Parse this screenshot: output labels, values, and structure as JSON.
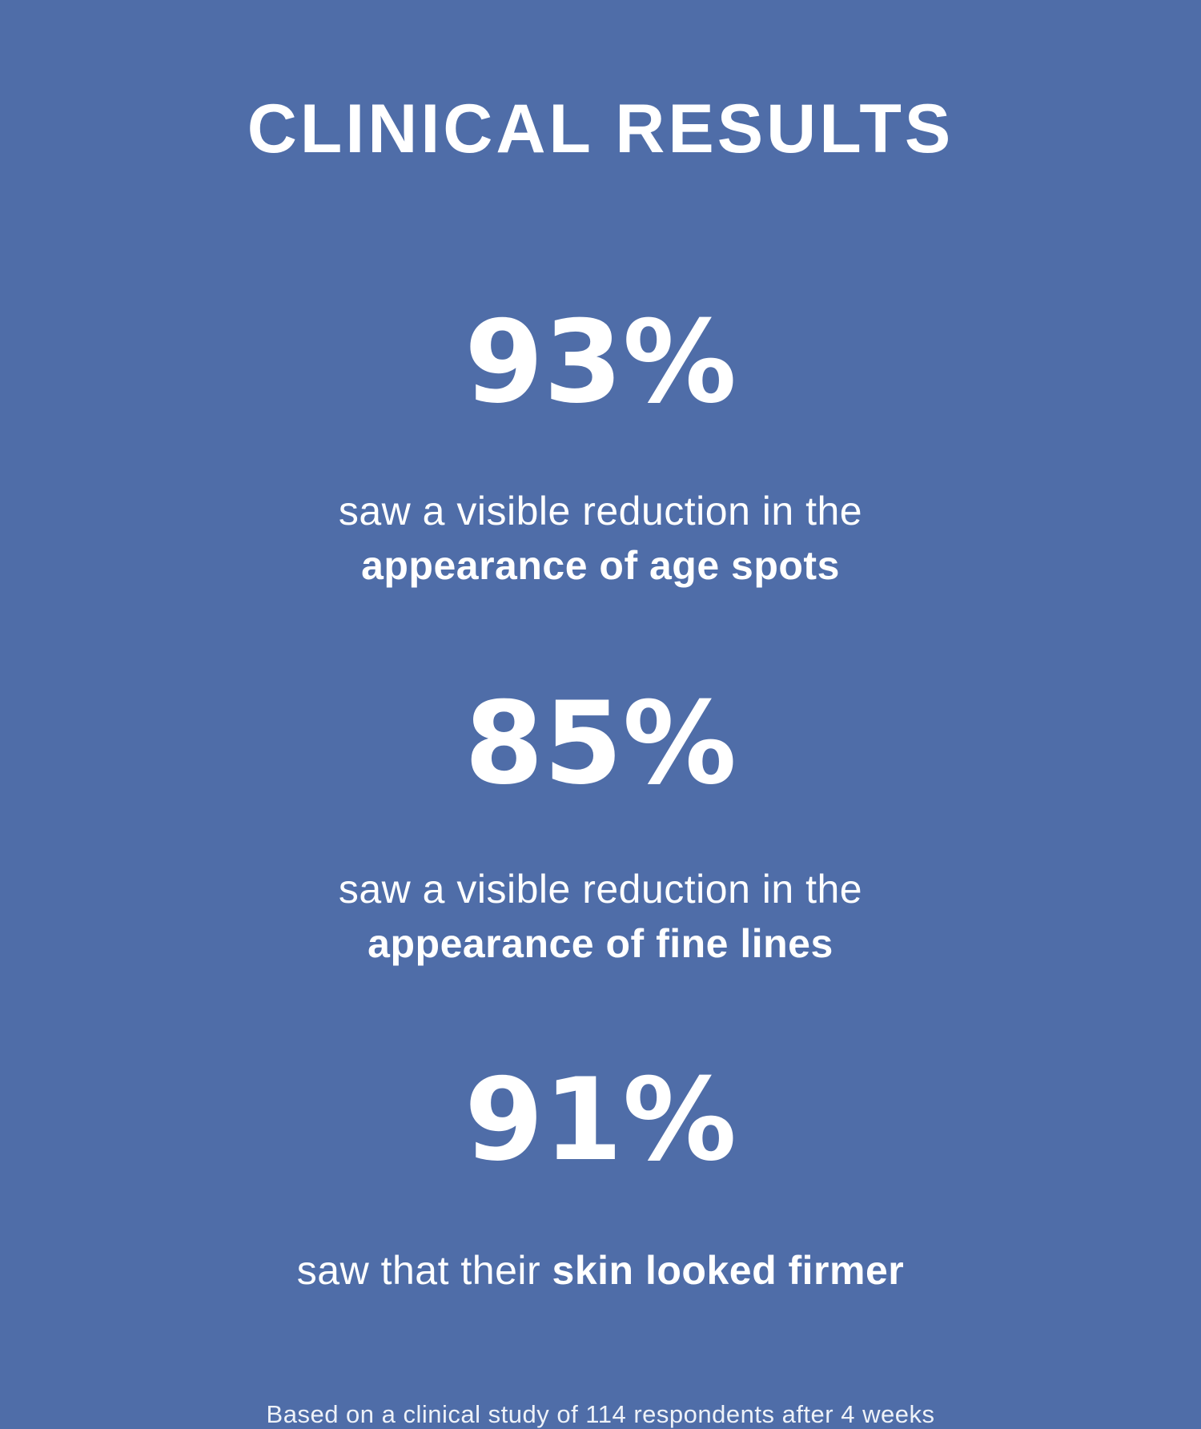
{
  "poster": {
    "background_color": "#4f6da8",
    "text_color": "#ffffff",
    "title": "CLINICAL RESULTS",
    "stats": [
      {
        "value": "93%",
        "line1": "saw a visible reduction in the",
        "line2_bold": "appearance of age spots"
      },
      {
        "value": "85%",
        "line1": "saw a visible reduction in the",
        "line2_bold": "appearance of fine lines"
      },
      {
        "value": "91%",
        "line1": "saw that their ",
        "line1_bold": "skin looked firmer"
      }
    ],
    "footnote": "Based on a clinical study of 114 respondents after 4 weeks"
  }
}
